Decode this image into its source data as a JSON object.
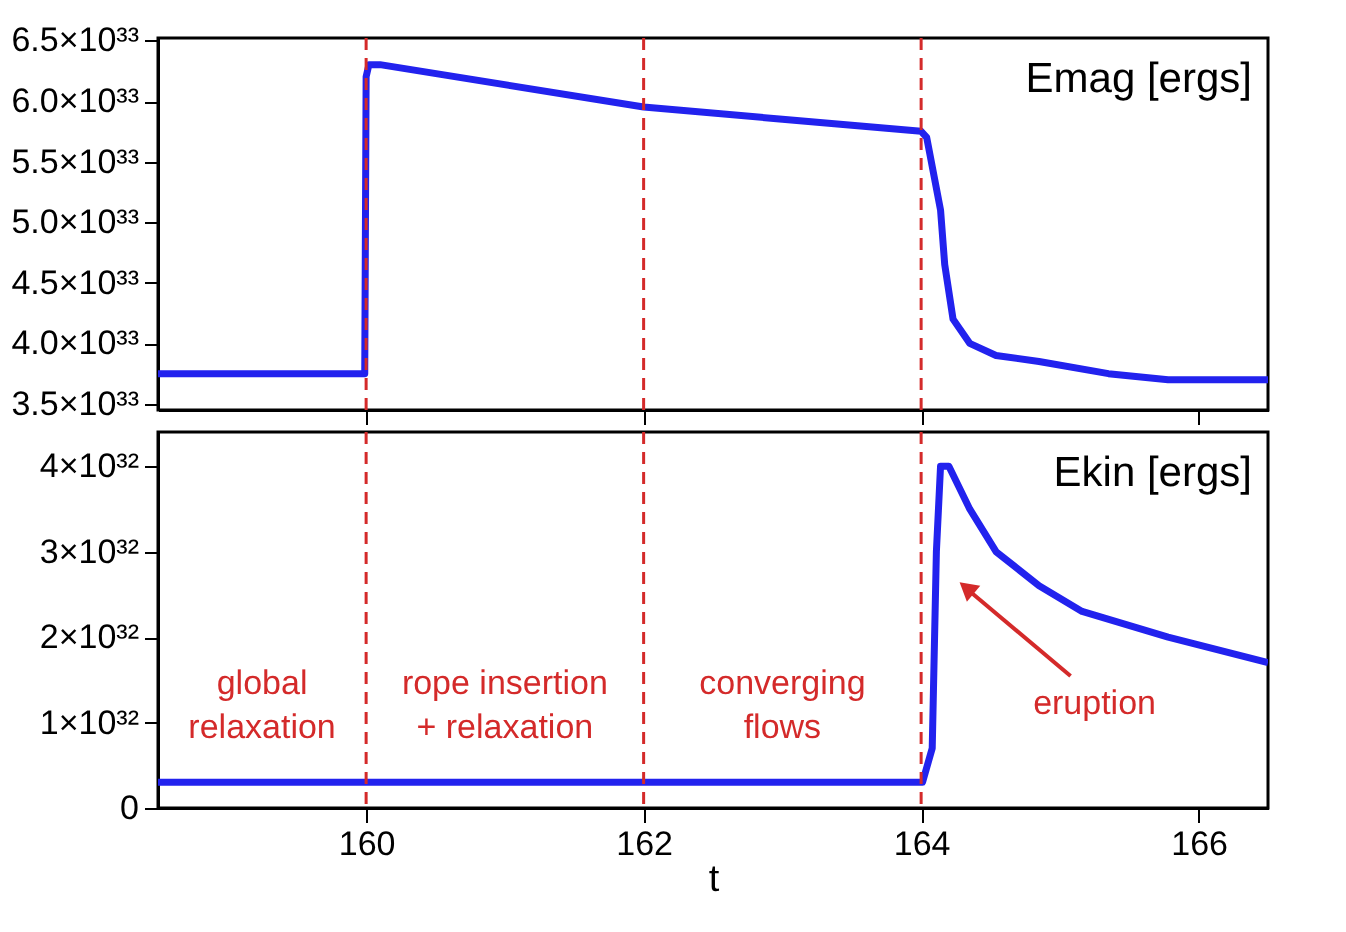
{
  "chart_data": [
    {
      "type": "line",
      "x": [
        158.5,
        159.99,
        160.0,
        160.02,
        160.1,
        162,
        163,
        164,
        164.04,
        164.14,
        164.17,
        164.23,
        164.35,
        164.54,
        164.85,
        165.35,
        165.78,
        166.5
      ],
      "series": [
        {
          "name": "Emag [ergs]",
          "color": "#2222ee",
          "values": [
            3.75e+33,
            3.75e+33,
            6.2e+33,
            6.3e+33,
            6.3e+33,
            5.95e+33,
            5.85e+33,
            5.75e+33,
            5.7e+33,
            5.1e+33,
            4.65e+33,
            4.2e+33,
            4e+33,
            3.9e+33,
            3.85e+33,
            3.75e+33,
            3.7e+33,
            3.7e+33
          ]
        }
      ],
      "xlim": [
        158.5,
        166.5
      ],
      "xticks": [
        160,
        162,
        164,
        166
      ],
      "ylim": [
        3.45e+33,
        6.52e+33
      ],
      "yticks": [
        {
          "value": 3.5e+33,
          "label": "3.5×10³³"
        },
        {
          "value": 4e+33,
          "label": "4.0×10³³"
        },
        {
          "value": 4.5e+33,
          "label": "4.5×10³³"
        },
        {
          "value": 5e+33,
          "label": "5.0×10³³"
        },
        {
          "value": 5.5e+33,
          "label": "5.5×10³³"
        },
        {
          "value": 6e+33,
          "label": "6.0×10³³"
        },
        {
          "value": 6.5e+33,
          "label": "6.5×10³³"
        }
      ],
      "ref_lines": [
        {
          "axis": "x",
          "value": 160,
          "color": "#d42a2a",
          "line_style": "dashed"
        },
        {
          "axis": "x",
          "value": 162,
          "color": "#d42a2a",
          "line_style": "dashed"
        },
        {
          "axis": "x",
          "value": 164,
          "color": "#d42a2a",
          "line_style": "dashed"
        }
      ],
      "tick_labels": "y"
    },
    {
      "type": "line",
      "x": [
        158.5,
        164.01,
        164.08,
        164.11,
        164.14,
        164.2,
        164.35,
        164.54,
        164.85,
        165.16,
        165.78,
        166.5
      ],
      "series": [
        {
          "name": "Ekin [ergs]",
          "color": "#2222ee",
          "values": [
            3e+31,
            3e+31,
            7e+31,
            3e+32,
            4e+32,
            4e+32,
            3.5e+32,
            3e+32,
            2.6e+32,
            2.3e+32,
            2e+32,
            1.7e+32
          ]
        }
      ],
      "xlabel": "t",
      "xlim": [
        158.5,
        166.5
      ],
      "xticks": [
        160,
        162,
        164,
        166
      ],
      "ylim": [
        0,
        4.4e+32
      ],
      "yticks": [
        0,
        {
          "value": 1e+32,
          "label": "1×10³²"
        },
        {
          "value": 2e+32,
          "label": "2×10³²"
        },
        {
          "value": 3e+32,
          "label": "3×10³²"
        },
        {
          "value": 4e+32,
          "label": "4×10³²"
        }
      ],
      "ref_lines": [
        {
          "axis": "x",
          "value": 160,
          "color": "#d42a2a",
          "line_style": "dashed"
        },
        {
          "axis": "x",
          "value": 162,
          "color": "#d42a2a",
          "line_style": "dashed"
        },
        {
          "axis": "x",
          "value": 164,
          "color": "#d42a2a",
          "line_style": "dashed"
        }
      ],
      "annotations": [
        "global\nrelaxation",
        "rope insertion\n+ relaxation",
        "converging\nflows",
        "eruption"
      ]
    }
  ]
}
